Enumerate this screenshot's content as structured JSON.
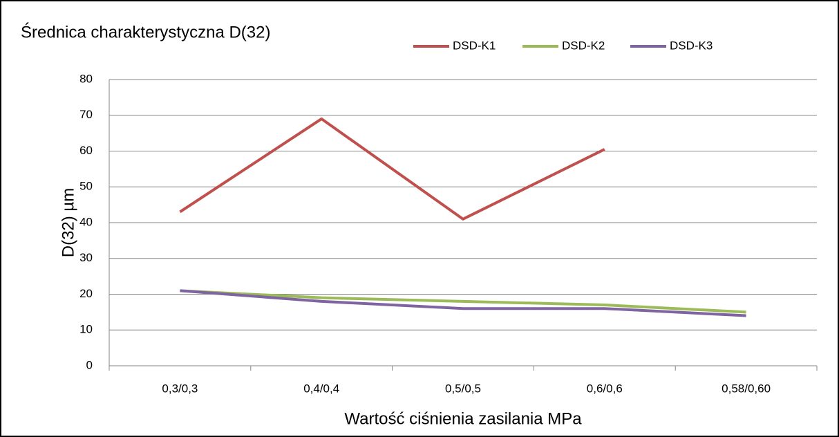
{
  "chart_data": {
    "type": "line",
    "title": "Średnica charakterystyczna D(32)",
    "xlabel": "Wartość ciśnienia zasilania MPa",
    "ylabel": "D(32) µm",
    "categories": [
      "0,3/0,3",
      "0,4/0,4",
      "0,5/0,5",
      "0,6/0,6",
      "0,58/0,60"
    ],
    "series": [
      {
        "name": "DSD-K1",
        "color": "#c0504d",
        "values": [
          43,
          69,
          41,
          60.5,
          null
        ]
      },
      {
        "name": "DSD-K2",
        "color": "#9bbb59",
        "values": [
          21,
          19,
          18,
          17,
          15
        ]
      },
      {
        "name": "DSD-K3",
        "color": "#8064a2",
        "values": [
          21,
          18,
          16,
          16,
          14
        ]
      }
    ],
    "ylim": [
      0,
      80
    ],
    "yticks": [
      0,
      10,
      20,
      30,
      40,
      50,
      60,
      70,
      80
    ],
    "grid": true,
    "legend": "top"
  }
}
